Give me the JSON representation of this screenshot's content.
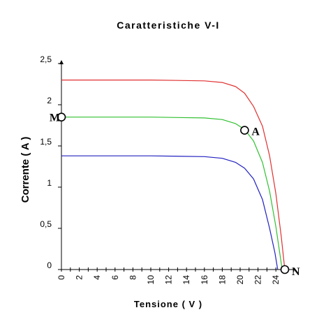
{
  "chart_data": {
    "type": "line",
    "title": "Caratteristiche V-I",
    "xlabel": "Tensione ( V )",
    "ylabel": "Corrente ( A )",
    "xlim": [
      0,
      26
    ],
    "ylim": [
      0,
      2.5
    ],
    "x_ticks": [
      "0",
      "2",
      "4",
      "6",
      "8",
      "10",
      "12",
      "14",
      "16",
      "18",
      "20",
      "22",
      "24"
    ],
    "y_ticks": [
      "0",
      "0,5",
      "1",
      "1,5",
      "2",
      "2,5"
    ],
    "grid": false,
    "series": [
      {
        "color": "#e03030",
        "x": [
          0,
          10,
          16,
          18,
          19.5,
          20.5,
          21.5,
          22.5,
          23.3,
          24,
          24.6,
          25
        ],
        "y": [
          2.3,
          2.3,
          2.29,
          2.27,
          2.22,
          2.14,
          1.98,
          1.74,
          1.38,
          0.92,
          0.4,
          0
        ]
      },
      {
        "color": "#30c030",
        "x": [
          0,
          10,
          16,
          18,
          19.5,
          20.5,
          21.5,
          22.5,
          23.3,
          24,
          24.7
        ],
        "y": [
          1.85,
          1.85,
          1.84,
          1.82,
          1.77,
          1.7,
          1.56,
          1.3,
          0.95,
          0.52,
          0
        ]
      },
      {
        "color": "#2020c0",
        "x": [
          0,
          10,
          16,
          18,
          19.5,
          20.5,
          21.5,
          22.5,
          23.3,
          23.9,
          24.2
        ],
        "y": [
          1.38,
          1.38,
          1.37,
          1.35,
          1.3,
          1.23,
          1.1,
          0.85,
          0.5,
          0.2,
          0
        ]
      }
    ],
    "points": [
      {
        "label": "M",
        "x": 0,
        "y": 1.85
      },
      {
        "label": "A",
        "x": 20.5,
        "y": 1.69
      },
      {
        "label": "N",
        "x": 25,
        "y": 0
      }
    ]
  }
}
